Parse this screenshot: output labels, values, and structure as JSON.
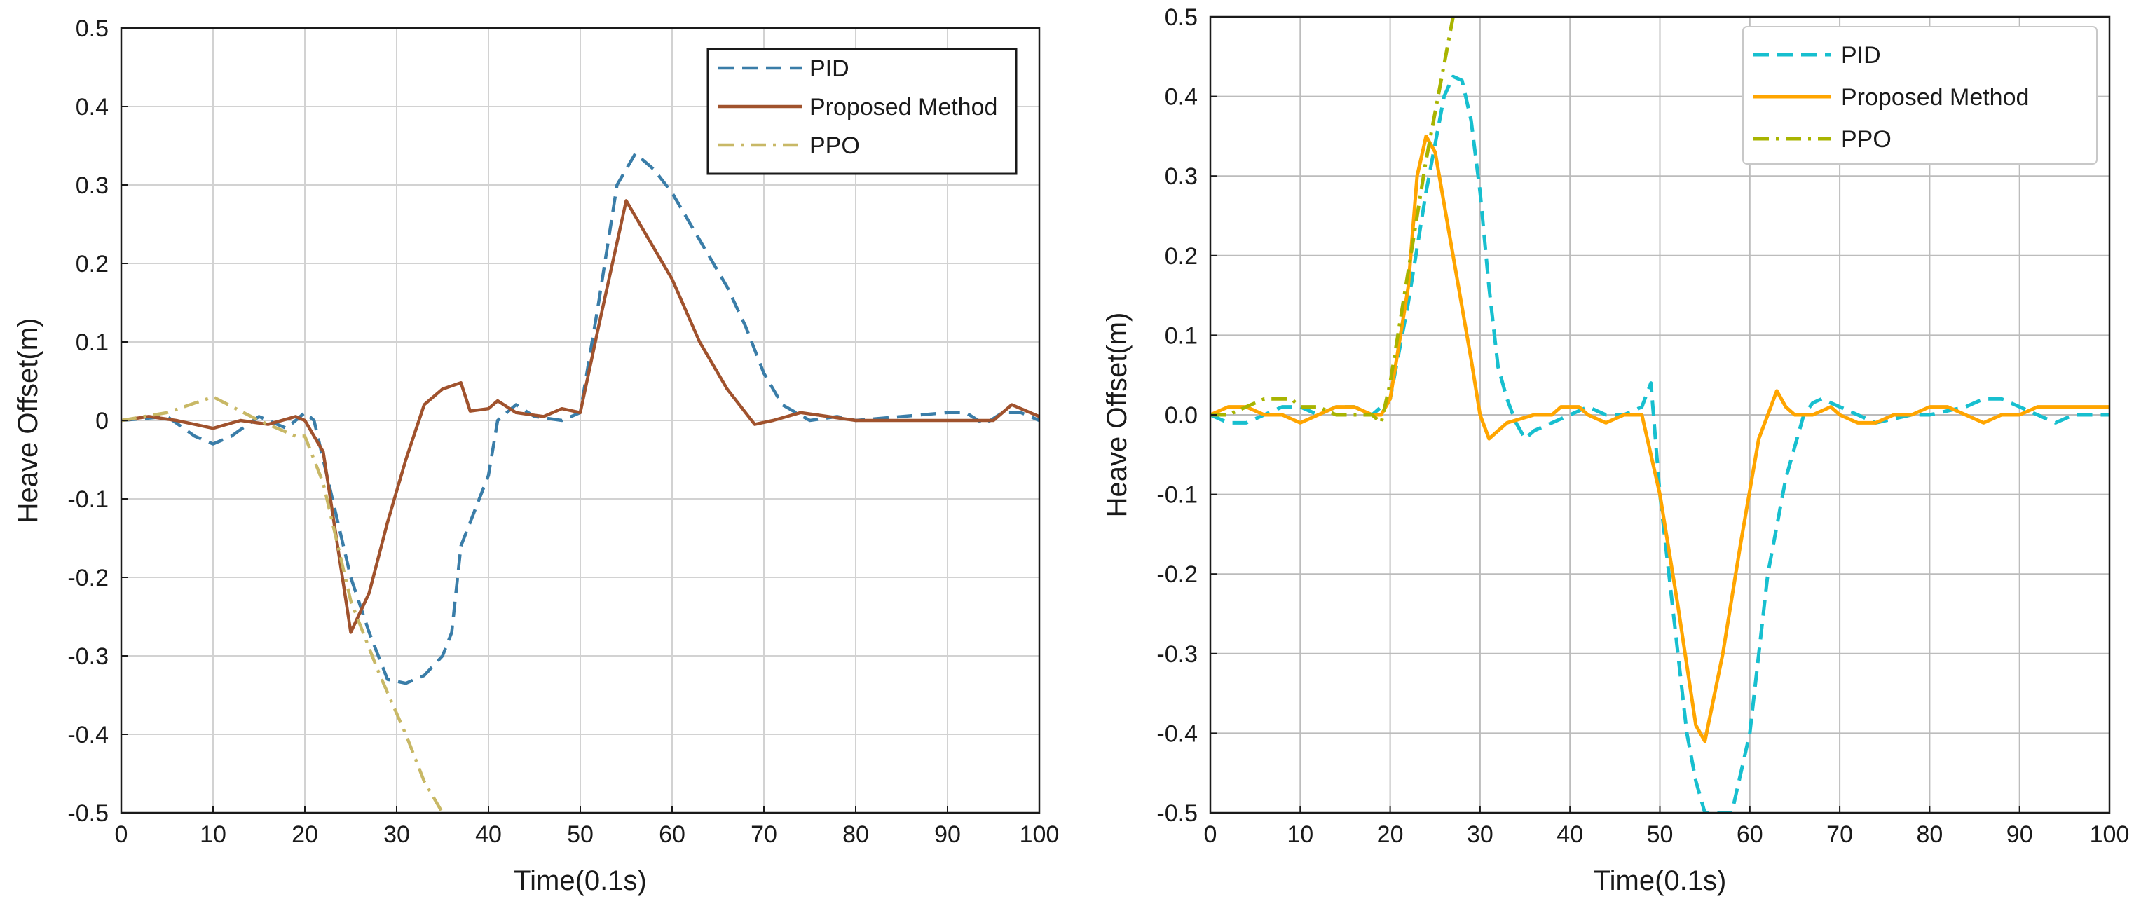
{
  "chart_data": [
    {
      "type": "line",
      "title": "",
      "xlabel": "Time(0.1s)",
      "ylabel": "Heave Offset(m)",
      "xlim": [
        0,
        100
      ],
      "ylim": [
        -0.5,
        0.5
      ],
      "xticks": [
        "0",
        "10",
        "20",
        "30",
        "40",
        "50",
        "60",
        "70",
        "80",
        "90",
        "100"
      ],
      "xtick_values": [
        0,
        10,
        20,
        30,
        40,
        50,
        60,
        70,
        80,
        90,
        100
      ],
      "yticks": [
        "-0.5",
        "-0.4",
        "-0.3",
        "-0.2",
        "-0.1",
        "0",
        "0.1",
        "0.2",
        "0.3",
        "0.4",
        "0.5"
      ],
      "ytick_values": [
        -0.5,
        -0.4,
        -0.3,
        -0.2,
        -0.1,
        0,
        0.1,
        0.2,
        0.3,
        0.4,
        0.5
      ],
      "grid": true,
      "legend_position": "top-right",
      "series": [
        {
          "name": "PID",
          "color": "#3a7da8",
          "style": "dashed",
          "x": [
            0,
            5,
            8,
            10,
            12,
            15,
            18,
            20,
            21,
            23,
            25,
            27,
            29,
            31,
            33,
            35,
            36,
            37,
            38,
            40,
            41,
            43,
            45,
            48,
            50,
            52,
            54,
            56,
            58,
            60,
            62,
            64,
            66,
            68,
            70,
            72,
            75,
            78,
            80,
            90,
            92,
            94,
            96,
            98,
            100
          ],
          "y": [
            0,
            0.005,
            -0.02,
            -0.03,
            -0.02,
            0.005,
            -0.01,
            0.01,
            0,
            -0.1,
            -0.2,
            -0.27,
            -0.33,
            -0.335,
            -0.325,
            -0.3,
            -0.27,
            -0.16,
            -0.13,
            -0.07,
            0,
            0.02,
            0.005,
            0,
            0.01,
            0.15,
            0.3,
            0.34,
            0.32,
            0.29,
            0.25,
            0.21,
            0.17,
            0.12,
            0.06,
            0.02,
            0,
            0.005,
            0,
            0.01,
            0.01,
            -0.005,
            0.01,
            0.01,
            0
          ]
        },
        {
          "name": "Proposed Method",
          "color": "#a0522d",
          "style": "solid",
          "x": [
            0,
            3,
            6,
            8,
            10,
            13,
            16,
            19,
            20,
            22,
            25,
            27,
            29,
            31,
            33,
            35,
            37,
            38,
            40,
            41,
            43,
            46,
            48,
            50,
            52,
            55,
            58,
            60,
            63,
            66,
            69,
            71,
            74,
            77,
            80,
            90,
            95,
            97,
            100
          ],
          "y": [
            0,
            0.005,
            0,
            -0.005,
            -0.01,
            0,
            -0.005,
            0.005,
            0,
            -0.04,
            -0.27,
            -0.22,
            -0.13,
            -0.05,
            0.02,
            0.04,
            0.048,
            0.012,
            0.015,
            0.025,
            0.01,
            0.005,
            0.015,
            0.01,
            0.12,
            0.28,
            0.22,
            0.18,
            0.1,
            0.04,
            -0.005,
            0,
            0.01,
            0.005,
            0,
            0,
            0,
            0.02,
            0.005
          ]
        },
        {
          "name": "PPO",
          "color": "#c8b866",
          "style": "dashdot",
          "x": [
            0,
            5,
            10,
            15,
            19,
            20,
            22,
            25,
            28,
            31,
            33,
            35
          ],
          "y": [
            0,
            0.01,
            0.03,
            0,
            -0.02,
            -0.02,
            -0.08,
            -0.23,
            -0.32,
            -0.4,
            -0.46,
            -0.5
          ]
        }
      ]
    },
    {
      "type": "line",
      "title": "",
      "xlabel": "Time(0.1s)",
      "ylabel": "Heave Offset(m)",
      "xlim": [
        0,
        100
      ],
      "ylim": [
        -0.5,
        0.5
      ],
      "xticks": [
        "0",
        "10",
        "20",
        "30",
        "40",
        "50",
        "60",
        "70",
        "80",
        "90",
        "100"
      ],
      "xtick_values": [
        0,
        10,
        20,
        30,
        40,
        50,
        60,
        70,
        80,
        90,
        100
      ],
      "yticks": [
        "-0.5",
        "-0.4",
        "-0.3",
        "-0.2",
        "-0.1",
        "0.0",
        "0.1",
        "0.2",
        "0.3",
        "0.4",
        "0.5"
      ],
      "ytick_values": [
        -0.5,
        -0.4,
        -0.3,
        -0.2,
        -0.1,
        0,
        0.1,
        0.2,
        0.3,
        0.4,
        0.5
      ],
      "grid": true,
      "legend_position": "top-right",
      "series": [
        {
          "name": "PID",
          "color": "#17bfcf",
          "style": "dashed",
          "x": [
            0,
            2,
            4,
            6,
            8,
            10,
            12,
            14,
            16,
            18,
            19,
            20,
            22,
            24,
            26,
            27,
            28,
            29,
            30,
            31,
            32,
            33,
            34,
            35,
            36,
            38,
            40,
            42,
            44,
            46,
            48,
            49,
            50,
            52,
            53,
            54,
            55,
            58,
            60,
            62,
            64,
            66,
            67,
            68,
            70,
            72,
            74,
            76,
            78,
            80,
            82,
            84,
            86,
            88,
            90,
            92,
            94,
            96,
            98,
            100
          ],
          "y": [
            0,
            -0.01,
            -0.01,
            0,
            0.01,
            0.01,
            0,
            0.01,
            0.01,
            0,
            0.01,
            0.02,
            0.14,
            0.28,
            0.4,
            0.425,
            0.42,
            0.37,
            0.28,
            0.16,
            0.06,
            0.02,
            -0.01,
            -0.03,
            -0.02,
            -0.01,
            0,
            0.01,
            0,
            0,
            0.01,
            0.04,
            -0.1,
            -0.3,
            -0.4,
            -0.46,
            -0.5,
            -0.5,
            -0.4,
            -0.2,
            -0.08,
            0,
            0.015,
            0.02,
            0.01,
            0,
            -0.01,
            -0.005,
            0,
            0,
            0.005,
            0.01,
            0.02,
            0.02,
            0.01,
            0,
            -0.01,
            0,
            0,
            0
          ]
        },
        {
          "name": "Proposed Method",
          "color": "#ffa500",
          "style": "solid",
          "x": [
            0,
            2,
            4,
            6,
            8,
            10,
            12,
            14,
            16,
            18,
            19,
            20,
            22,
            23,
            24,
            25,
            27,
            29,
            30,
            31,
            33,
            36,
            38,
            39,
            41,
            42,
            44,
            46,
            48,
            50,
            52,
            54,
            55,
            57,
            59,
            61,
            62,
            63,
            64,
            65,
            67,
            69,
            70,
            72,
            74,
            76,
            78,
            80,
            82,
            84,
            86,
            88,
            90,
            92,
            94,
            96,
            98,
            100
          ],
          "y": [
            0,
            0.01,
            0.01,
            0,
            0,
            -0.01,
            0,
            0.01,
            0.01,
            0,
            0,
            0.02,
            0.16,
            0.3,
            0.35,
            0.33,
            0.2,
            0.07,
            0,
            -0.03,
            -0.01,
            0,
            0,
            0.01,
            0.01,
            0,
            -0.01,
            0,
            0,
            -0.1,
            -0.24,
            -0.39,
            -0.41,
            -0.3,
            -0.16,
            -0.03,
            0,
            0.03,
            0.01,
            0,
            0,
            0.01,
            0,
            -0.01,
            -0.01,
            0,
            0,
            0.01,
            0.01,
            0,
            -0.01,
            0,
            0,
            0.01,
            0.01,
            0.01,
            0.01,
            0.01
          ]
        },
        {
          "name": "PPO",
          "color": "#a8b400",
          "style": "dashdot",
          "x": [
            0,
            2,
            4,
            6,
            8,
            9,
            10,
            12,
            14,
            16,
            18,
            19,
            20,
            22,
            24,
            26,
            27
          ],
          "y": [
            0,
            0,
            0.01,
            0.02,
            0.02,
            0.02,
            0.01,
            0.01,
            0,
            0,
            0,
            -0.01,
            0.04,
            0.18,
            0.32,
            0.44,
            0.5
          ]
        }
      ]
    }
  ]
}
